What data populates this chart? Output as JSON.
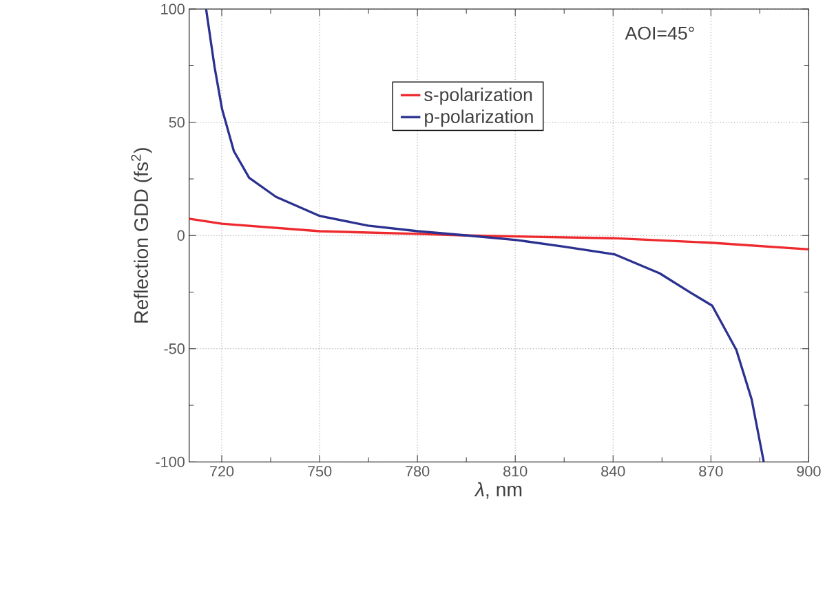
{
  "chart_data": {
    "type": "line",
    "xlabel": "*λ*, nm",
    "ylabel": "Reflection GDD (fs$^{2}$)",
    "xlim": [
      710,
      900
    ],
    "ylim": [
      -100,
      100
    ],
    "xticks": [
      720,
      {
        "value": 735,
        "label": null
      },
      750,
      {
        "value": 765,
        "label": null
      },
      780,
      {
        "value": 795,
        "label": null
      },
      810,
      {
        "value": 825,
        "label": null
      },
      840,
      {
        "value": 855,
        "label": null
      },
      870,
      {
        "value": 885,
        "label": null
      },
      900
    ],
    "yticks": [
      -100,
      {
        "value": -75,
        "label": null
      },
      -50,
      {
        "value": -25,
        "label": null
      },
      0,
      {
        "value": 25,
        "label": null
      },
      50,
      {
        "value": 75,
        "label": null
      },
      100
    ],
    "grid": true,
    "legend": "top",
    "marker": "none",
    "line_style": "solid",
    "annotations": [
      "AOI=45°"
    ],
    "series": [
      {
        "name": "s-polarization",
        "color": "#ee2a2e",
        "x": [
          710,
          720,
          750,
          780,
          795.4,
          840,
          870,
          900
        ],
        "values": [
          7.4,
          5.2,
          1.9,
          0.7,
          0,
          -1.2,
          -3.2,
          -6.1
        ]
      },
      {
        "name": "p-polarization",
        "color": "#2b3190",
        "x": [
          715.2,
          717.8,
          720.1,
          723.7,
          728.4,
          736.6,
          750.1,
          764.8,
          780.1,
          795.4,
          810.4,
          824.8,
          840.4,
          854.3,
          863.7,
          870.4,
          877.8,
          882.5,
          886.2
        ],
        "values": [
          100,
          74.4,
          55.8,
          37.3,
          25.5,
          17.1,
          8.6,
          4.4,
          1.9,
          0,
          -2.0,
          -4.9,
          -8.3,
          -16.7,
          -25.2,
          -31.0,
          -50.5,
          -72.4,
          -99.9
        ]
      }
    ]
  }
}
